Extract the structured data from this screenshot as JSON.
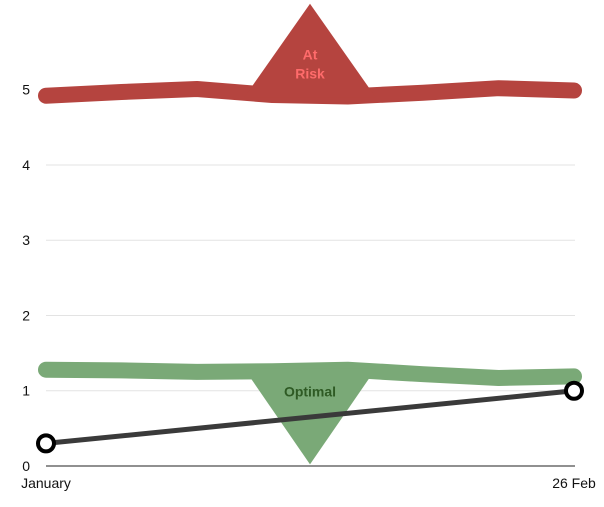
{
  "chart_data": {
    "type": "line",
    "x_tick_labels": [
      "January",
      "26 Feb"
    ],
    "y_ticks": [
      0,
      1,
      2,
      3,
      4,
      5
    ],
    "ylim": [
      0,
      5.9
    ],
    "grid": true,
    "series": [
      {
        "values": [
          0.3,
          1.0
        ],
        "color": "#3a3a3a",
        "marker": "hollow-circle"
      }
    ],
    "bands": [
      {
        "label": "At Risk",
        "color": "#b5443f",
        "text_color": "#ff6b6b",
        "values": [
          4.92,
          4.97,
          5.01,
          4.93,
          4.91,
          4.96,
          5.02,
          4.99
        ],
        "pointer": "up"
      },
      {
        "label": "Optimal",
        "color": "#7aa977",
        "text_color": "#2e5a24",
        "values": [
          1.28,
          1.27,
          1.25,
          1.26,
          1.28,
          1.22,
          1.17,
          1.19
        ],
        "pointer": "down"
      }
    ]
  }
}
